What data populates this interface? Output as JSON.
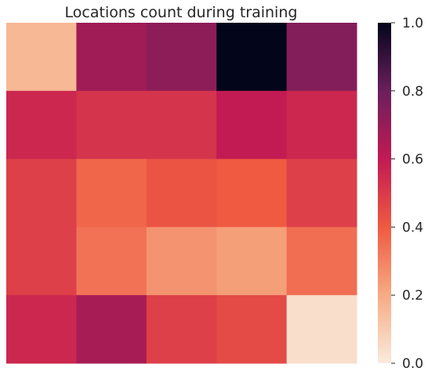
{
  "chart_data": {
    "type": "heatmap",
    "title": "Locations count during training",
    "xlabel": "",
    "ylabel": "",
    "rows": 5,
    "cols": 5,
    "values": [
      [
        0.16,
        0.68,
        0.72,
        1.0,
        0.74
      ],
      [
        0.56,
        0.52,
        0.52,
        0.6,
        0.56
      ],
      [
        0.48,
        0.37,
        0.42,
        0.4,
        0.48
      ],
      [
        0.48,
        0.34,
        0.26,
        0.23,
        0.35
      ],
      [
        0.56,
        0.66,
        0.48,
        0.45,
        0.04
      ]
    ],
    "colorbar": {
      "min": 0.0,
      "max": 1.0,
      "ticks": [
        0.0,
        0.2,
        0.4,
        0.6,
        0.8,
        1.0
      ],
      "tick_labels": [
        "0.0",
        "0.2",
        "0.4",
        "0.6",
        "0.8",
        "1.0"
      ]
    },
    "colormap": "rocket_r",
    "grid": false,
    "legend": "colorbar-right"
  }
}
